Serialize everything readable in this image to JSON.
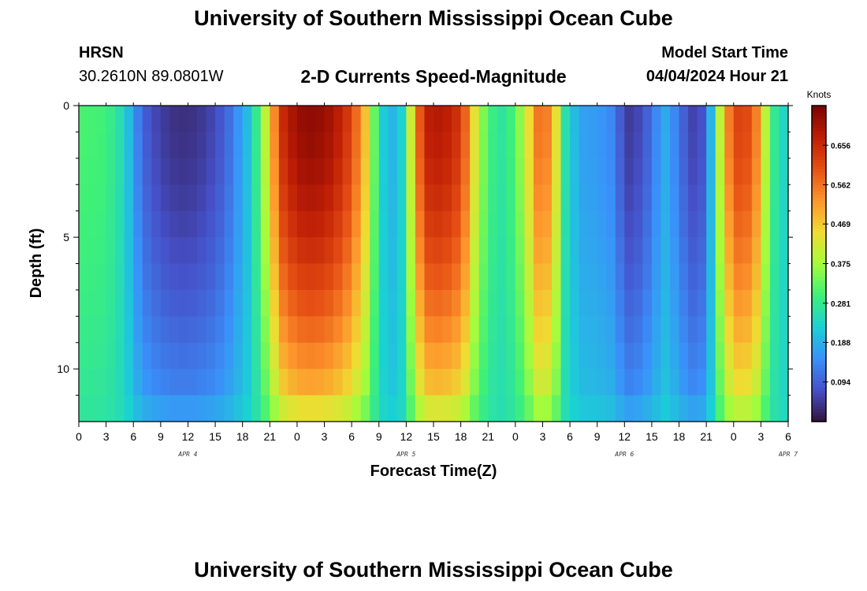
{
  "header": {
    "title": "University of Southern Mississippi Ocean Cube",
    "station": "HRSN",
    "coords": "30.2610N  89.0801W",
    "subtitle": "2-D Currents Speed-Magnitude",
    "model_start_label": "Model Start Time",
    "model_start_value": "04/04/2024 Hour 21"
  },
  "footer": {
    "title": "University of Southern Mississippi Ocean Cube"
  },
  "chart_data": {
    "type": "heatmap",
    "title": "2-D Currents Speed-Magnitude",
    "xlabel": "Forecast Time(Z)",
    "ylabel": "Depth (ft)",
    "x_ticks": [
      "0",
      "3",
      "6",
      "9",
      "12",
      "15",
      "18",
      "21",
      "0",
      "3",
      "6",
      "9",
      "12",
      "15",
      "18",
      "21",
      "0",
      "3",
      "6",
      "9",
      "12",
      "15",
      "18",
      "21",
      "0",
      "3",
      "6"
    ],
    "date_labels": [
      {
        "label": "APR 4",
        "hour": 12
      },
      {
        "label": "APR 5",
        "hour": 36
      },
      {
        "label": "APR 6",
        "hour": 60
      },
      {
        "label": "APR 7",
        "hour": 78
      }
    ],
    "x_range_hours": [
      0,
      78
    ],
    "y_range_ft": [
      0,
      12
    ],
    "y_ticks": [
      "0",
      "5",
      "10"
    ],
    "y_tick_values": [
      0,
      5,
      10
    ],
    "colorbar": {
      "unit": "Knots",
      "ticks": [
        "0.094",
        "0.188",
        "0.281",
        "0.375",
        "0.469",
        "0.562",
        "0.656"
      ],
      "tick_values": [
        0.094,
        0.188,
        0.281,
        0.375,
        0.469,
        0.562,
        0.656
      ],
      "range": [
        0.0,
        0.75
      ]
    },
    "depth_levels_ft": [
      0.5,
      1.5,
      2.5,
      3.5,
      4.5,
      5.5,
      6.5,
      7.5,
      8.5,
      9.5,
      10.5,
      11.5
    ],
    "surface_speed_profile": [
      [
        0,
        0.31
      ],
      [
        3,
        0.3
      ],
      [
        5,
        0.24
      ],
      [
        6,
        0.16
      ],
      [
        7,
        0.1
      ],
      [
        8,
        0.07
      ],
      [
        10,
        0.04
      ],
      [
        12,
        0.035
      ],
      [
        14,
        0.05
      ],
      [
        16,
        0.09
      ],
      [
        17,
        0.13
      ],
      [
        18.5,
        0.2
      ],
      [
        20,
        0.32
      ],
      [
        21,
        0.48
      ],
      [
        22.5,
        0.66
      ],
      [
        24,
        0.72
      ],
      [
        26,
        0.73
      ],
      [
        28,
        0.7
      ],
      [
        30,
        0.62
      ],
      [
        31.5,
        0.48
      ],
      [
        32.5,
        0.33
      ],
      [
        33.5,
        0.22
      ],
      [
        35,
        0.18
      ],
      [
        36,
        0.28
      ],
      [
        37,
        0.55
      ],
      [
        38.5,
        0.68
      ],
      [
        40,
        0.69
      ],
      [
        41.5,
        0.65
      ],
      [
        42.5,
        0.58
      ],
      [
        43.5,
        0.44
      ],
      [
        45,
        0.3
      ],
      [
        46.5,
        0.27
      ],
      [
        48,
        0.31
      ],
      [
        49.5,
        0.45
      ],
      [
        50.5,
        0.56
      ],
      [
        51.5,
        0.55
      ],
      [
        52.5,
        0.44
      ],
      [
        53.5,
        0.26
      ],
      [
        55,
        0.17
      ],
      [
        57,
        0.16
      ],
      [
        58.5,
        0.14
      ],
      [
        59.5,
        0.09
      ],
      [
        60.5,
        0.05
      ],
      [
        62,
        0.07
      ],
      [
        63,
        0.12
      ],
      [
        64.5,
        0.18
      ],
      [
        65.5,
        0.14
      ],
      [
        67,
        0.07
      ],
      [
        68,
        0.05
      ],
      [
        69,
        0.1
      ],
      [
        70,
        0.28
      ],
      [
        71,
        0.52
      ],
      [
        72.5,
        0.62
      ],
      [
        73.5,
        0.61
      ],
      [
        74.5,
        0.55
      ],
      [
        75.5,
        0.4
      ],
      [
        76.5,
        0.28
      ],
      [
        78,
        0.22
      ]
    ]
  }
}
